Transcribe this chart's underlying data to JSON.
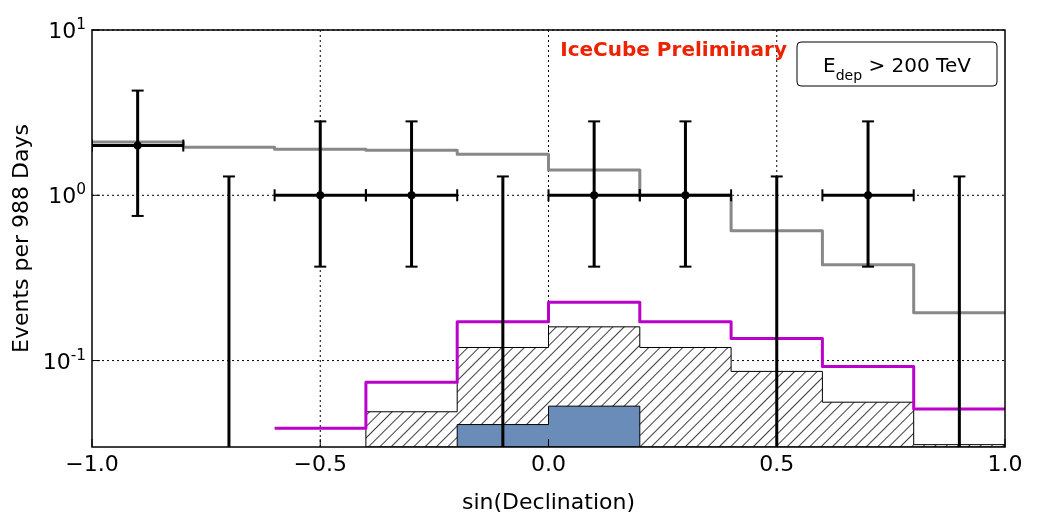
{
  "chart_data": {
    "type": "scatter",
    "xlabel": "sin(Declination)",
    "ylabel": "Events per 988 Days",
    "legend_title": "E$_{dep}$ > 200 TeV",
    "annotations": [
      "IceCube Preliminary"
    ],
    "log": "y",
    "grid": true,
    "xlim": [
      -1,
      1
    ],
    "xticks": [
      {
        "value": -1,
        "label": "−1.0"
      },
      {
        "value": -0.5,
        "label": "−0.5"
      },
      {
        "value": 0,
        "label": "0.0"
      },
      {
        "value": 0.5,
        "label": "0.5"
      },
      {
        "value": 1,
        "label": "1.0"
      }
    ],
    "ylim": [
      0.03,
      10
    ],
    "yticks": [
      {
        "value": 0.1,
        "label": "10$^{-1}$"
      },
      {
        "value": 1,
        "label": "10$^{0}$"
      },
      {
        "value": 10,
        "label": "10$^{1}$"
      }
    ],
    "series": [
      {
        "type": "area",
        "color": "#000000",
        "x": [
          -0.4,
          -0.2,
          0,
          0.2,
          0.4,
          0.6,
          0.8,
          1.0
        ],
        "values": [
          0.049,
          0.12,
          0.16,
          0.12,
          0.086,
          0.056,
          0.031,
          0.031
        ]
      },
      {
        "type": "area",
        "color": "#6a8cb8",
        "x": [
          -0.2,
          0,
          0.2
        ],
        "values": [
          0.041,
          0.053,
          0.053
        ]
      },
      {
        "type": "step",
        "color": "#888888",
        "x": [
          -1,
          -0.8,
          -0.6,
          -0.4,
          -0.2,
          0,
          0.2,
          0.4,
          0.6,
          0.8,
          1.0
        ],
        "values": [
          2.1,
          1.95,
          1.9,
          1.87,
          1.77,
          1.42,
          1.0,
          0.61,
          0.38,
          0.195,
          0.195
        ]
      },
      {
        "type": "step",
        "color": "#bb00cc",
        "x": [
          -0.6,
          -0.4,
          -0.2,
          0,
          0.2,
          0.4,
          0.6,
          0.8,
          1.0
        ],
        "values": [
          0.039,
          0.074,
          0.172,
          0.225,
          0.172,
          0.136,
          0.092,
          0.051,
          0.051
        ]
      },
      {
        "color": "#000000",
        "marker": "circle",
        "x": [
          -0.9,
          -0.5,
          -0.3,
          0.1,
          0.3,
          0.7
        ],
        "values": [
          2,
          1,
          1,
          1,
          1,
          1
        ],
        "errors": [
          [
            0.75,
            4.3
          ],
          [
            0.37,
            2.8
          ],
          [
            0.37,
            2.8
          ],
          [
            0.37,
            2.8
          ],
          [
            0.37,
            2.8
          ],
          [
            0.37,
            2.8
          ]
        ],
        "xerrors": [
          0.1,
          0.1,
          0.1,
          0.1,
          0.1,
          0.1
        ]
      },
      {
        "type": "bar",
        "color": "#000000",
        "x": [
          -0.7,
          -0.1,
          0.5,
          0.9
        ],
        "values": [
          1.3,
          1.3,
          1.3,
          1.3
        ]
      }
    ]
  }
}
